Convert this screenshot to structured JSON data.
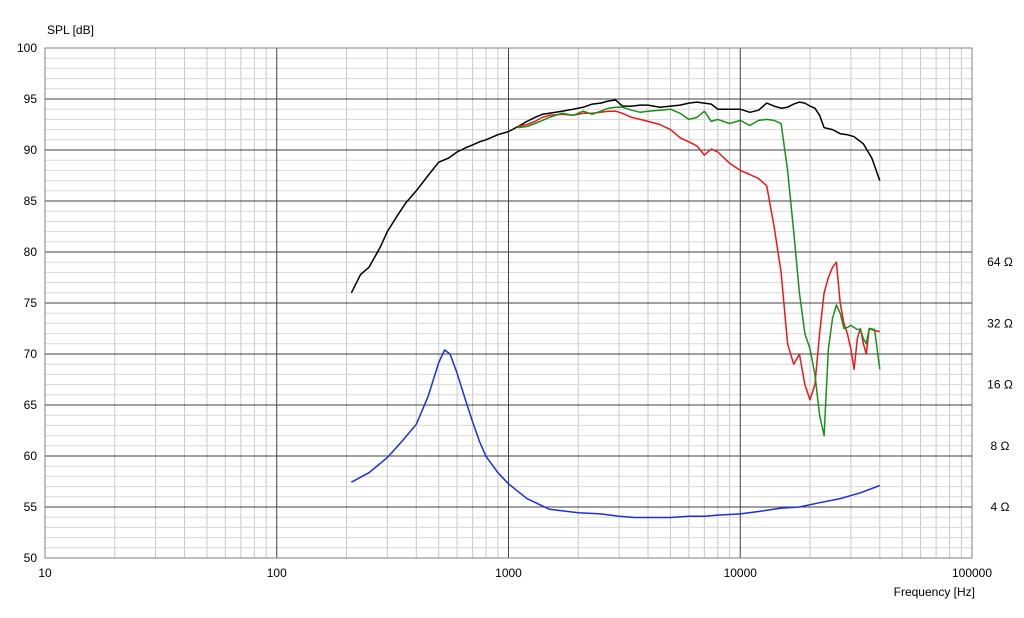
{
  "chart_data": {
    "type": "line",
    "ylabel": "SPL [dB]",
    "xlabel": "Frequency [Hz]",
    "x_scale": "log",
    "xlim": [
      10,
      100000
    ],
    "ylim": [
      50,
      100
    ],
    "grid": true,
    "x_ticks": [
      {
        "value": 10,
        "label": "10"
      },
      {
        "value": 100,
        "label": "100"
      },
      {
        "value": 1000,
        "label": "1000"
      },
      {
        "value": 10000,
        "label": "10000"
      },
      {
        "value": 100000,
        "label": "100000"
      }
    ],
    "y_ticks": [
      50,
      55,
      60,
      65,
      70,
      75,
      80,
      85,
      90,
      95,
      100
    ],
    "y2_scale": "log",
    "y2_ticks": [
      {
        "value": 4,
        "label": "4 Ω"
      },
      {
        "value": 8,
        "label": "8 Ω"
      },
      {
        "value": 16,
        "label": "16 Ω"
      },
      {
        "value": 32,
        "label": "32 Ω"
      },
      {
        "value": 64,
        "label": "64 Ω"
      }
    ],
    "y2_anchor": {
      "ohm": 4,
      "db": 55,
      "db_per_octave": 6
    },
    "series": [
      {
        "color": "#000000",
        "axis": "y",
        "x": [
          210,
          230,
          250,
          280,
          300,
          330,
          360,
          400,
          450,
          500,
          550,
          600,
          650,
          700,
          750,
          800,
          900,
          1000,
          1100,
          1200,
          1300,
          1400,
          1500,
          1700,
          1900,
          2100,
          2300,
          2500,
          2700,
          2900,
          3100,
          3400,
          3700,
          4000,
          4500,
          5000,
          5500,
          6000,
          6500,
          7000,
          7500,
          8000,
          9000,
          10000,
          11000,
          12000,
          13000,
          14000,
          15000,
          16000,
          17000,
          18000,
          19000,
          20000,
          21000,
          22000,
          23000,
          25000,
          27000,
          29000,
          31000,
          34000,
          37000,
          40000
        ],
        "y": [
          76,
          77.8,
          78.5,
          80.5,
          82,
          83.5,
          84.8,
          86,
          87.5,
          88.8,
          89.2,
          89.8,
          90.2,
          90.5,
          90.8,
          91,
          91.5,
          91.8,
          92.3,
          92.8,
          93.2,
          93.5,
          93.6,
          93.8,
          94,
          94.2,
          94.5,
          94.6,
          94.8,
          94.9,
          94.3,
          94.3,
          94.4,
          94.4,
          94.2,
          94.3,
          94.4,
          94.6,
          94.7,
          94.6,
          94.5,
          94,
          94,
          94,
          93.7,
          93.9,
          94.6,
          94.3,
          94.1,
          94.2,
          94.5,
          94.7,
          94.6,
          94.3,
          94.1,
          93.4,
          92.2,
          92,
          91.6,
          91.5,
          91.3,
          90.6,
          89.2,
          87
        ]
      },
      {
        "color": "#e8191c",
        "axis": "y",
        "x": [
          1100,
          1200,
          1300,
          1400,
          1500,
          1700,
          1900,
          2100,
          2300,
          2500,
          2700,
          2900,
          3100,
          3400,
          3700,
          4000,
          4500,
          5000,
          5500,
          6000,
          6500,
          7000,
          7500,
          8000,
          9000,
          10000,
          11000,
          12000,
          13000,
          14000,
          15000,
          16000,
          17000,
          18000,
          19000,
          20000,
          21000,
          22000,
          23000,
          24000,
          25000,
          26000,
          27000,
          28000,
          29000,
          30000,
          31000,
          32000,
          33000,
          34000,
          35000,
          36000,
          38000,
          40000
        ],
        "y": [
          92.3,
          92.5,
          92.8,
          93.2,
          93.4,
          93.5,
          93.4,
          93.6,
          93.6,
          93.7,
          93.8,
          93.8,
          93.6,
          93.2,
          93,
          92.8,
          92.5,
          92,
          91.2,
          90.8,
          90.4,
          89.5,
          90.1,
          89.8,
          88.7,
          88,
          87.6,
          87.2,
          86.5,
          82.5,
          78,
          71,
          69,
          70,
          67,
          65.5,
          67,
          72,
          76,
          77.5,
          78.5,
          79,
          75,
          73,
          72,
          70.5,
          68.5,
          71.5,
          72.5,
          71,
          70,
          72.5,
          72.3,
          72.2
        ]
      },
      {
        "color": "#1a8f1a",
        "axis": "y",
        "x": [
          1100,
          1200,
          1300,
          1400,
          1500,
          1700,
          1900,
          2100,
          2300,
          2500,
          2700,
          2900,
          3100,
          3400,
          3700,
          4000,
          4500,
          5000,
          5500,
          6000,
          6500,
          7000,
          7500,
          8000,
          9000,
          10000,
          11000,
          12000,
          13000,
          14000,
          15000,
          16000,
          17000,
          18000,
          19000,
          20000,
          21000,
          22000,
          23000,
          24000,
          25000,
          26000,
          27000,
          28000,
          29000,
          30000,
          31000,
          32000,
          33000,
          34000,
          35000,
          36000,
          38000,
          40000
        ],
        "y": [
          92.2,
          92.3,
          92.6,
          92.9,
          93.2,
          93.6,
          93.4,
          93.8,
          93.5,
          93.8,
          94.1,
          94.2,
          94.2,
          93.9,
          93.7,
          93.8,
          93.9,
          94,
          93.6,
          93,
          93.2,
          93.8,
          92.8,
          93,
          92.6,
          92.9,
          92.4,
          92.9,
          93,
          92.9,
          92.6,
          88,
          82,
          76,
          72,
          70.5,
          68,
          64,
          62,
          70.5,
          73.5,
          74.8,
          74,
          72.5,
          72.6,
          72.8,
          72.6,
          72.4,
          72.4,
          71.5,
          71,
          72.5,
          72.4,
          68.5
        ]
      },
      {
        "color": "#1f2ed6",
        "axis": "y2",
        "x": [
          210,
          250,
          300,
          350,
          400,
          450,
          500,
          530,
          560,
          600,
          650,
          700,
          750,
          800,
          900,
          1000,
          1200,
          1500,
          2000,
          2500,
          3000,
          3500,
          4000,
          5000,
          6000,
          7000,
          8000,
          10000,
          12000,
          15000,
          18000,
          22000,
          27000,
          33000,
          40000
        ],
        "y": [
          5.3,
          5.9,
          7.0,
          8.5,
          10.2,
          14,
          20.5,
          23.7,
          22.6,
          18.2,
          13.6,
          10.5,
          8.4,
          7.1,
          5.9,
          5.2,
          4.4,
          3.9,
          3.75,
          3.7,
          3.6,
          3.55,
          3.55,
          3.55,
          3.6,
          3.6,
          3.65,
          3.7,
          3.8,
          3.95,
          4.0,
          4.2,
          4.4,
          4.7,
          5.1
        ]
      }
    ]
  }
}
